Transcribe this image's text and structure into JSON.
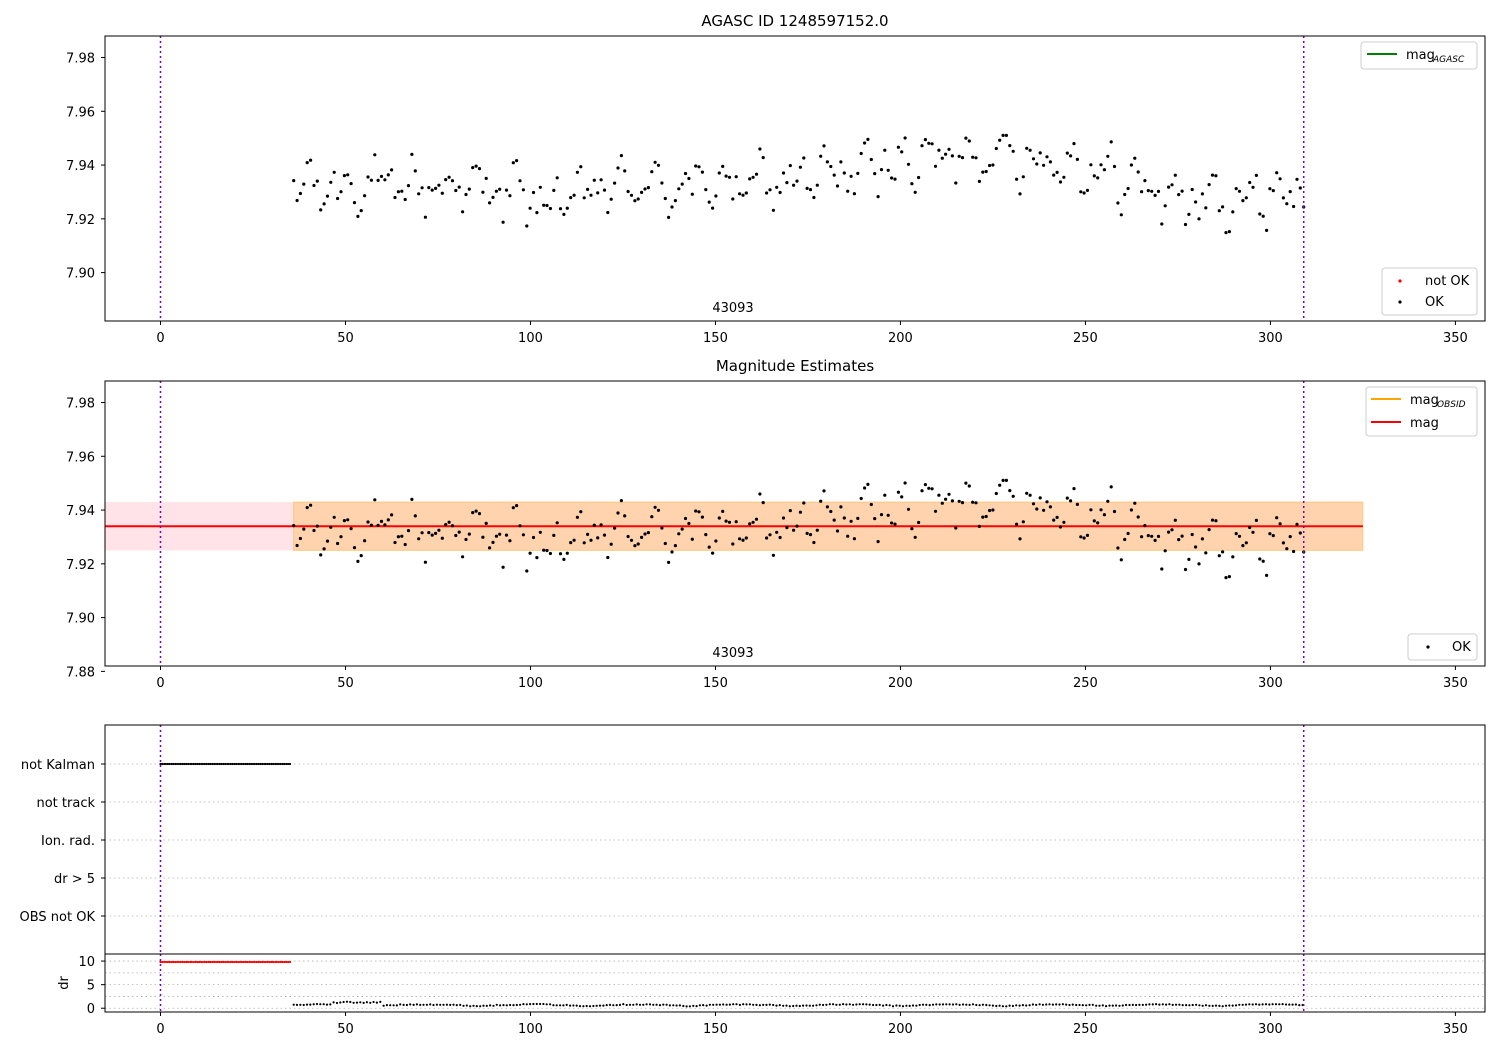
{
  "chart_data": [
    {
      "type": "scatter",
      "title": "AGASC ID 1248597152.0",
      "annotation": "43093",
      "xlim": [
        -15,
        358
      ],
      "ylim": [
        7.882,
        7.988
      ],
      "xticks": [
        0,
        50,
        100,
        150,
        200,
        250,
        300,
        350
      ],
      "yticks": [
        7.9,
        7.92,
        7.94,
        7.96,
        7.98
      ],
      "vlines": [
        0,
        309
      ],
      "legend_upper": {
        "placement": "top-right",
        "entries": [
          {
            "label": "mag",
            "sub": "AGASC",
            "color": "#008000"
          }
        ]
      },
      "legend_lower": {
        "placement": "bottom-right",
        "entries": [
          {
            "label": "not OK",
            "color": "#ff0000"
          },
          {
            "label": "OK",
            "color": "#000000"
          }
        ]
      },
      "series": [
        {
          "name": "OK",
          "color": "#000000",
          "x_start": 36,
          "x_end": 309,
          "count": 300
        }
      ]
    },
    {
      "type": "scatter",
      "title": "Magnitude Estimates",
      "annotation": "43093",
      "xlim": [
        -15,
        358
      ],
      "ylim": [
        7.882,
        7.988
      ],
      "xticks": [
        0,
        50,
        100,
        150,
        200,
        250,
        300,
        350
      ],
      "yticks": [
        7.88,
        7.9,
        7.92,
        7.94,
        7.96,
        7.98
      ],
      "vlines": [
        0,
        309
      ],
      "mag_mean": 7.934,
      "mag_band": [
        7.925,
        7.943
      ],
      "band_x": [
        -15,
        325
      ],
      "obsid_band_x": [
        36,
        325
      ],
      "legend_upper": {
        "placement": "top-right",
        "entries": [
          {
            "label": "mag",
            "sub": "OBSID",
            "color": "#ffa500"
          },
          {
            "label": "mag",
            "sub": "",
            "color": "#ff0000"
          }
        ]
      },
      "legend_lower": {
        "placement": "bottom-right",
        "entries": [
          {
            "label": "OK",
            "color": "#000000"
          }
        ]
      }
    },
    {
      "type": "scatter",
      "title": "",
      "xlim": [
        -15,
        358
      ],
      "categories": [
        "not Kalman",
        "not track",
        "Ion. rad.",
        "dr > 5",
        "OBS not OK"
      ],
      "vlines": [
        0,
        309
      ],
      "flags": [
        {
          "category": "not Kalman",
          "x_start": 0,
          "x_end": 35,
          "color": "#000000"
        }
      ]
    },
    {
      "type": "scatter",
      "title": "",
      "ylabel": "dr",
      "xlim": [
        -15,
        358
      ],
      "ylim": [
        -0.8,
        11.5
      ],
      "yticks": [
        0,
        5,
        10
      ],
      "xticks": [
        0,
        50,
        100,
        150,
        200,
        250,
        300,
        350
      ],
      "vlines": [
        0,
        309
      ],
      "series": [
        {
          "name": "dr clipped",
          "color": "#ff0000",
          "x_start": 0,
          "x_end": 35,
          "value": 9.8
        },
        {
          "name": "dr",
          "color": "#000000",
          "x_start": 36,
          "x_end": 309
        }
      ]
    }
  ]
}
